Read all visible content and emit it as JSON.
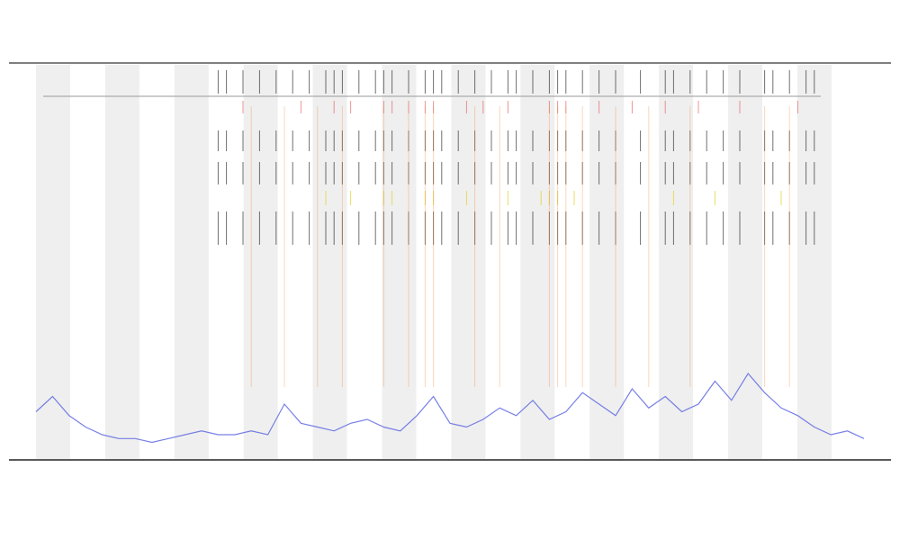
{
  "chart_data": {
    "type": "line",
    "xlim": [
      0,
      100
    ],
    "ylim": [
      0,
      100
    ],
    "x": [
      0,
      2,
      4,
      6,
      8,
      10,
      12,
      14,
      16,
      18,
      20,
      22,
      24,
      26,
      28,
      30,
      32,
      34,
      36,
      38,
      40,
      42,
      44,
      46,
      48,
      50,
      52,
      54,
      56,
      58,
      60,
      62,
      64,
      66,
      68,
      70,
      72,
      74,
      76,
      78,
      80,
      82,
      84,
      86,
      88,
      90,
      92,
      94,
      96,
      98,
      100
    ],
    "series": [
      {
        "color": "#5560e0",
        "values": [
          10,
          14,
          9,
          6,
          4,
          3,
          3,
          2,
          3,
          4,
          5,
          4,
          4,
          5,
          4,
          12,
          7,
          6,
          5,
          7,
          8,
          6,
          5,
          9,
          14,
          7,
          6,
          8,
          11,
          9,
          13,
          8,
          10,
          15,
          12,
          9,
          16,
          11,
          14,
          10,
          12,
          18,
          13,
          20,
          15,
          11,
          9,
          6,
          4,
          5,
          3
        ]
      }
    ],
    "events": [
      {
        "color": "#333333",
        "x": [
          22,
          23,
          25,
          27,
          29,
          31,
          33,
          35,
          36,
          37,
          39,
          41,
          42,
          43,
          45,
          47,
          48,
          49,
          51,
          53,
          55,
          57,
          58,
          60,
          62,
          63,
          64,
          66,
          68,
          70,
          73,
          76,
          77,
          79,
          81,
          83,
          85,
          88,
          89,
          91,
          93,
          94
        ]
      },
      {
        "color": "#e05050",
        "x": [
          25,
          32,
          36,
          38,
          42,
          43,
          45,
          47,
          48,
          52,
          54,
          57,
          62,
          63,
          64,
          68,
          72,
          76,
          80,
          85,
          92
        ]
      },
      {
        "color": "#e0d020",
        "x": [
          35,
          38,
          42,
          43,
          47,
          48,
          52,
          57,
          61,
          62,
          63,
          65,
          77,
          82,
          90
        ]
      },
      {
        "color": "#f08a40",
        "x": [
          26,
          30,
          34,
          37,
          42,
          45,
          47,
          48,
          53,
          56,
          62,
          63,
          64,
          66,
          70,
          74,
          79,
          88,
          91
        ]
      }
    ]
  }
}
